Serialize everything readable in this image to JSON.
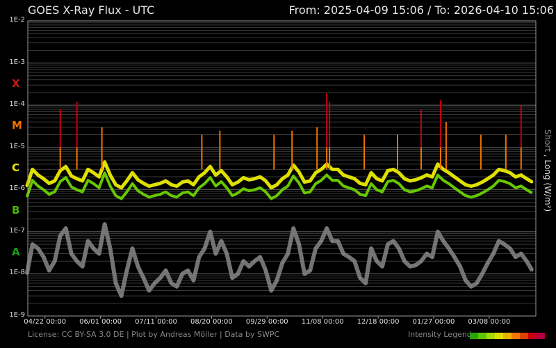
{
  "header": {
    "title": "GOES X-Ray Flux - UTC",
    "range": "From: 2025-04-09 15:06  /  To: 2026-04-10 15:06"
  },
  "side_label": {
    "short": "Short",
    "sep": " , ",
    "long": "Long (W/m²)"
  },
  "footer": {
    "credits": "License: CC BY-SA 3.0 DE | Plot by Andreas Möller | Data by SWPC",
    "legend_label": "Intensity Legend",
    "legend_colors": [
      "#22a800",
      "#5cc400",
      "#a8d800",
      "#e0e000",
      "#f0b000",
      "#f07800",
      "#e04000",
      "#c80010",
      "#b00040"
    ]
  },
  "flare_classes": [
    {
      "label": "X",
      "color": "#d01818"
    },
    {
      "label": "M",
      "color": "#f07000"
    },
    {
      "label": "C",
      "color": "#e8e800"
    },
    {
      "label": "B",
      "color": "#48b800"
    },
    {
      "label": "A",
      "color": "#18a018"
    }
  ],
  "colors": {
    "short_channel": "#808080",
    "background": "#000000",
    "grid": "#505050"
  },
  "chart_data": {
    "type": "line",
    "title": "GOES X-Ray Flux - UTC",
    "ylabel": "Short , Long (W/m²)",
    "yscale": "log",
    "ylim": [
      1e-09,
      0.01
    ],
    "ytick_labels": [
      "1E-2",
      "1E-3",
      "1E-4",
      "1E-5",
      "1E-6",
      "1E-7",
      "1E-8",
      "1E-9"
    ],
    "xlim": [
      "2025-04-09 15:06",
      "2026-04-10 15:06"
    ],
    "xtick_dates": [
      "2025-04-22",
      "2025-06-01",
      "2025-07-11",
      "2025-08-20",
      "2025-09-29",
      "2025-11-08",
      "2025-12-18",
      "2026-01-27",
      "2026-03-08"
    ],
    "xtick_labels": [
      "04/22 00:00",
      "06/01 00:00",
      "07/11 00:00",
      "08/20 00:00",
      "09/29 00:00",
      "11/08 00:00",
      "12/18 00:00",
      "01/27 00:00",
      "03/08 00:00"
    ],
    "grid": true,
    "series": [
      {
        "name": "Long",
        "color": "#e0e000",
        "x": [
          "2025-04-09",
          "2025-04-13",
          "2025-04-17",
          "2025-04-21",
          "2025-04-25",
          "2025-04-29",
          "2025-05-03",
          "2025-05-07",
          "2025-05-11",
          "2025-05-15",
          "2025-05-19",
          "2025-05-23",
          "2025-05-27",
          "2025-05-31",
          "2025-06-04",
          "2025-06-08",
          "2025-06-12",
          "2025-06-16",
          "2025-06-20",
          "2025-06-24",
          "2025-06-28",
          "2025-07-02",
          "2025-07-06",
          "2025-07-10",
          "2025-07-14",
          "2025-07-18",
          "2025-07-22",
          "2025-07-26",
          "2025-07-30",
          "2025-08-03",
          "2025-08-07",
          "2025-08-11",
          "2025-08-15",
          "2025-08-19",
          "2025-08-23",
          "2025-08-27",
          "2025-08-31",
          "2025-09-04",
          "2025-09-08",
          "2025-09-12",
          "2025-09-16",
          "2025-09-20",
          "2025-09-24",
          "2025-09-28",
          "2025-10-02",
          "2025-10-06",
          "2025-10-10",
          "2025-10-14",
          "2025-10-18",
          "2025-10-22",
          "2025-10-26",
          "2025-10-30",
          "2025-11-03",
          "2025-11-07",
          "2025-11-11",
          "2025-11-15",
          "2025-11-19",
          "2025-11-23",
          "2025-11-27",
          "2025-12-01",
          "2025-12-05",
          "2025-12-09",
          "2025-12-13",
          "2025-12-17",
          "2025-12-21",
          "2025-12-25",
          "2025-12-29",
          "2026-01-02",
          "2026-01-06",
          "2026-01-10",
          "2026-01-14",
          "2026-01-18",
          "2026-01-22",
          "2026-01-26",
          "2026-01-30",
          "2026-02-03",
          "2026-02-07",
          "2026-02-11",
          "2026-02-15",
          "2026-02-19",
          "2026-02-23",
          "2026-02-27",
          "2026-03-03",
          "2026-03-07",
          "2026-03-11",
          "2026-03-15",
          "2026-03-19",
          "2026-03-23",
          "2026-03-27",
          "2026-03-31",
          "2026-04-04",
          "2026-04-08"
        ],
        "y": [
          1.2e-06,
          3e-06,
          2.2e-06,
          1.8e-06,
          1.4e-06,
          1.6e-06,
          2.8e-06,
          3.5e-06,
          2.1e-06,
          1.8e-06,
          1.6e-06,
          3e-06,
          2.5e-06,
          2e-06,
          4.5e-06,
          2.2e-06,
          1.3e-06,
          1.1e-06,
          1.6e-06,
          2.5e-06,
          1.7e-06,
          1.4e-06,
          1.2e-06,
          1.3e-06,
          1.4e-06,
          1.6e-06,
          1.3e-06,
          1.2e-06,
          1.5e-06,
          1.6e-06,
          1.3e-06,
          2e-06,
          2.5e-06,
          3.5e-06,
          2.2e-06,
          2.8e-06,
          2e-06,
          1.3e-06,
          1.5e-06,
          1.9e-06,
          1.7e-06,
          1.8e-06,
          2e-06,
          1.6e-06,
          1.1e-06,
          1.3e-06,
          1.8e-06,
          2.2e-06,
          3.8e-06,
          2.6e-06,
          1.5e-06,
          1.6e-06,
          2.5e-06,
          3e-06,
          4e-06,
          3e-06,
          3e-06,
          2.2e-06,
          2e-06,
          1.8e-06,
          1.4e-06,
          1.3e-06,
          2.5e-06,
          1.8e-06,
          1.6e-06,
          2.8e-06,
          3e-06,
          2.5e-06,
          1.8e-06,
          1.6e-06,
          1.7e-06,
          1.9e-06,
          2.2e-06,
          2e-06,
          4e-06,
          3e-06,
          2.5e-06,
          2e-06,
          1.6e-06,
          1.3e-06,
          1.2e-06,
          1.3e-06,
          1.5e-06,
          1.8e-06,
          2.2e-06,
          3e-06,
          2.8e-06,
          2.5e-06,
          2e-06,
          2.2e-06,
          1.8e-06,
          1.5e-06
        ]
      },
      {
        "name": "Short",
        "color": "#808080",
        "x": [
          "2025-04-09",
          "2025-04-13",
          "2025-04-17",
          "2025-04-21",
          "2025-04-25",
          "2025-04-29",
          "2025-05-03",
          "2025-05-07",
          "2025-05-11",
          "2025-05-15",
          "2025-05-19",
          "2025-05-23",
          "2025-05-27",
          "2025-05-31",
          "2025-06-04",
          "2025-06-08",
          "2025-06-12",
          "2025-06-16",
          "2025-06-20",
          "2025-06-24",
          "2025-06-28",
          "2025-07-02",
          "2025-07-06",
          "2025-07-10",
          "2025-07-14",
          "2025-07-18",
          "2025-07-22",
          "2025-07-26",
          "2025-07-30",
          "2025-08-03",
          "2025-08-07",
          "2025-08-11",
          "2025-08-15",
          "2025-08-19",
          "2025-08-23",
          "2025-08-27",
          "2025-08-31",
          "2025-09-04",
          "2025-09-08",
          "2025-09-12",
          "2025-09-16",
          "2025-09-20",
          "2025-09-24",
          "2025-09-28",
          "2025-10-02",
          "2025-10-06",
          "2025-10-10",
          "2025-10-14",
          "2025-10-18",
          "2025-10-22",
          "2025-10-26",
          "2025-10-30",
          "2025-11-03",
          "2025-11-07",
          "2025-11-11",
          "2025-11-15",
          "2025-11-19",
          "2025-11-23",
          "2025-11-27",
          "2025-12-01",
          "2025-12-05",
          "2025-12-09",
          "2025-12-13",
          "2025-12-17",
          "2025-12-21",
          "2025-12-25",
          "2025-12-29",
          "2026-01-02",
          "2026-01-06",
          "2026-01-10",
          "2026-01-14",
          "2026-01-18",
          "2026-01-22",
          "2026-01-26",
          "2026-01-30",
          "2026-02-03",
          "2026-02-07",
          "2026-02-11",
          "2026-02-15",
          "2026-02-19",
          "2026-02-23",
          "2026-02-27",
          "2026-03-03",
          "2026-03-07",
          "2026-03-11",
          "2026-03-15",
          "2026-03-19",
          "2026-03-23",
          "2026-03-27",
          "2026-03-31",
          "2026-04-04",
          "2026-04-08"
        ],
        "y": [
          1e-08,
          5e-08,
          4e-08,
          2.5e-08,
          1.2e-08,
          2e-08,
          8e-08,
          1.2e-07,
          3e-08,
          2e-08,
          1.5e-08,
          6e-08,
          4e-08,
          3e-08,
          1.5e-07,
          4e-08,
          6e-09,
          3e-09,
          1.2e-08,
          4e-08,
          1.5e-08,
          8e-09,
          4e-09,
          6e-09,
          8e-09,
          1.2e-08,
          6e-09,
          5e-09,
          1e-08,
          1.2e-08,
          7e-09,
          2.5e-08,
          4e-08,
          1e-07,
          3e-08,
          6e-08,
          3e-08,
          8e-09,
          1e-08,
          2e-08,
          1.5e-08,
          2e-08,
          2.5e-08,
          1.2e-08,
          4e-09,
          7e-09,
          1.8e-08,
          3e-08,
          1.2e-07,
          5e-08,
          1e-08,
          1.2e-08,
          4e-08,
          6e-08,
          1.2e-07,
          6e-08,
          6e-08,
          3e-08,
          2.5e-08,
          2e-08,
          8e-09,
          6e-09,
          4e-08,
          2e-08,
          1.5e-08,
          5e-08,
          6e-08,
          4e-08,
          2e-08,
          1.5e-08,
          1.6e-08,
          2e-08,
          3e-08,
          2.5e-08,
          1e-07,
          6e-08,
          4e-08,
          2.5e-08,
          1.5e-08,
          7e-09,
          5e-09,
          6e-09,
          1e-08,
          1.8e-08,
          3e-08,
          6e-08,
          5e-08,
          4e-08,
          2.5e-08,
          3e-08,
          2e-08,
          1.2e-08
        ]
      }
    ],
    "flare_peaks": [
      {
        "x": "2025-05-03",
        "y": 8e-05
      },
      {
        "x": "2025-05-15",
        "y": 0.00012
      },
      {
        "x": "2025-06-02",
        "y": 3e-05
      },
      {
        "x": "2025-08-13",
        "y": 2e-05
      },
      {
        "x": "2025-08-26",
        "y": 2.5e-05
      },
      {
        "x": "2025-10-04",
        "y": 2e-05
      },
      {
        "x": "2025-10-17",
        "y": 2.5e-05
      },
      {
        "x": "2025-11-04",
        "y": 3e-05
      },
      {
        "x": "2025-11-11",
        "y": 0.00019
      },
      {
        "x": "2025-11-13",
        "y": 0.00012
      },
      {
        "x": "2025-12-08",
        "y": 2e-05
      },
      {
        "x": "2026-01-01",
        "y": 2e-05
      },
      {
        "x": "2026-01-18",
        "y": 8e-05
      },
      {
        "x": "2026-02-01",
        "y": 0.00013
      },
      {
        "x": "2026-02-05",
        "y": 4e-05
      },
      {
        "x": "2026-03-02",
        "y": 2e-05
      },
      {
        "x": "2026-03-20",
        "y": 2e-05
      },
      {
        "x": "2026-03-31",
        "y": 0.0001
      }
    ]
  }
}
